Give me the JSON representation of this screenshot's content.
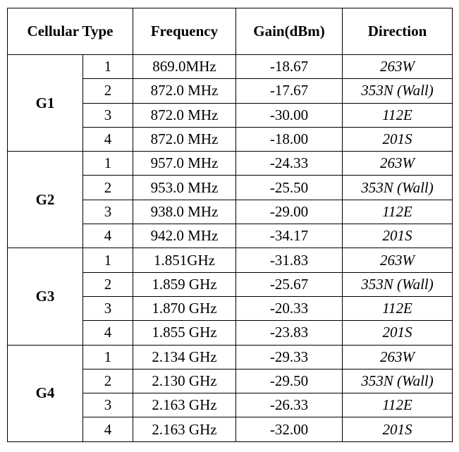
{
  "headers": {
    "cellular_type": "Cellular Type",
    "frequency": "Frequency",
    "gain": "Gain(dBm)",
    "direction": "Direction"
  },
  "groups": [
    {
      "name": "G1",
      "rows": [
        {
          "index": "1",
          "frequency": "869.0MHz",
          "gain": "-18.67",
          "direction": "263W"
        },
        {
          "index": "2",
          "frequency": "872.0 MHz",
          "gain": "-17.67",
          "direction": "353N (Wall)"
        },
        {
          "index": "3",
          "frequency": "872.0 MHz",
          "gain": "-30.00",
          "direction": "112E"
        },
        {
          "index": "4",
          "frequency": "872.0 MHz",
          "gain": "-18.00",
          "direction": "201S"
        }
      ]
    },
    {
      "name": "G2",
      "rows": [
        {
          "index": "1",
          "frequency": "957.0 MHz",
          "gain": "-24.33",
          "direction": "263W"
        },
        {
          "index": "2",
          "frequency": "953.0 MHz",
          "gain": "-25.50",
          "direction": "353N (Wall)"
        },
        {
          "index": "3",
          "frequency": "938.0 MHz",
          "gain": "-29.00",
          "direction": "112E"
        },
        {
          "index": "4",
          "frequency": "942.0 MHz",
          "gain": "-34.17",
          "direction": "201S"
        }
      ]
    },
    {
      "name": "G3",
      "rows": [
        {
          "index": "1",
          "frequency": "1.851GHz",
          "gain": "-31.83",
          "direction": "263W"
        },
        {
          "index": "2",
          "frequency": "1.859 GHz",
          "gain": "-25.67",
          "direction": "353N (Wall)"
        },
        {
          "index": "3",
          "frequency": "1.870 GHz",
          "gain": "-20.33",
          "direction": "112E"
        },
        {
          "index": "4",
          "frequency": "1.855 GHz",
          "gain": "-23.83",
          "direction": "201S"
        }
      ]
    },
    {
      "name": "G4",
      "rows": [
        {
          "index": "1",
          "frequency": "2.134 GHz",
          "gain": "-29.33",
          "direction": "263W"
        },
        {
          "index": "2",
          "frequency": "2.130 GHz",
          "gain": "-29.50",
          "direction": "353N (Wall)"
        },
        {
          "index": "3",
          "frequency": "2.163 GHz",
          "gain": "-26.33",
          "direction": "112E"
        },
        {
          "index": "4",
          "frequency": "2.163 GHz",
          "gain": "-32.00",
          "direction": "201S"
        }
      ]
    }
  ]
}
